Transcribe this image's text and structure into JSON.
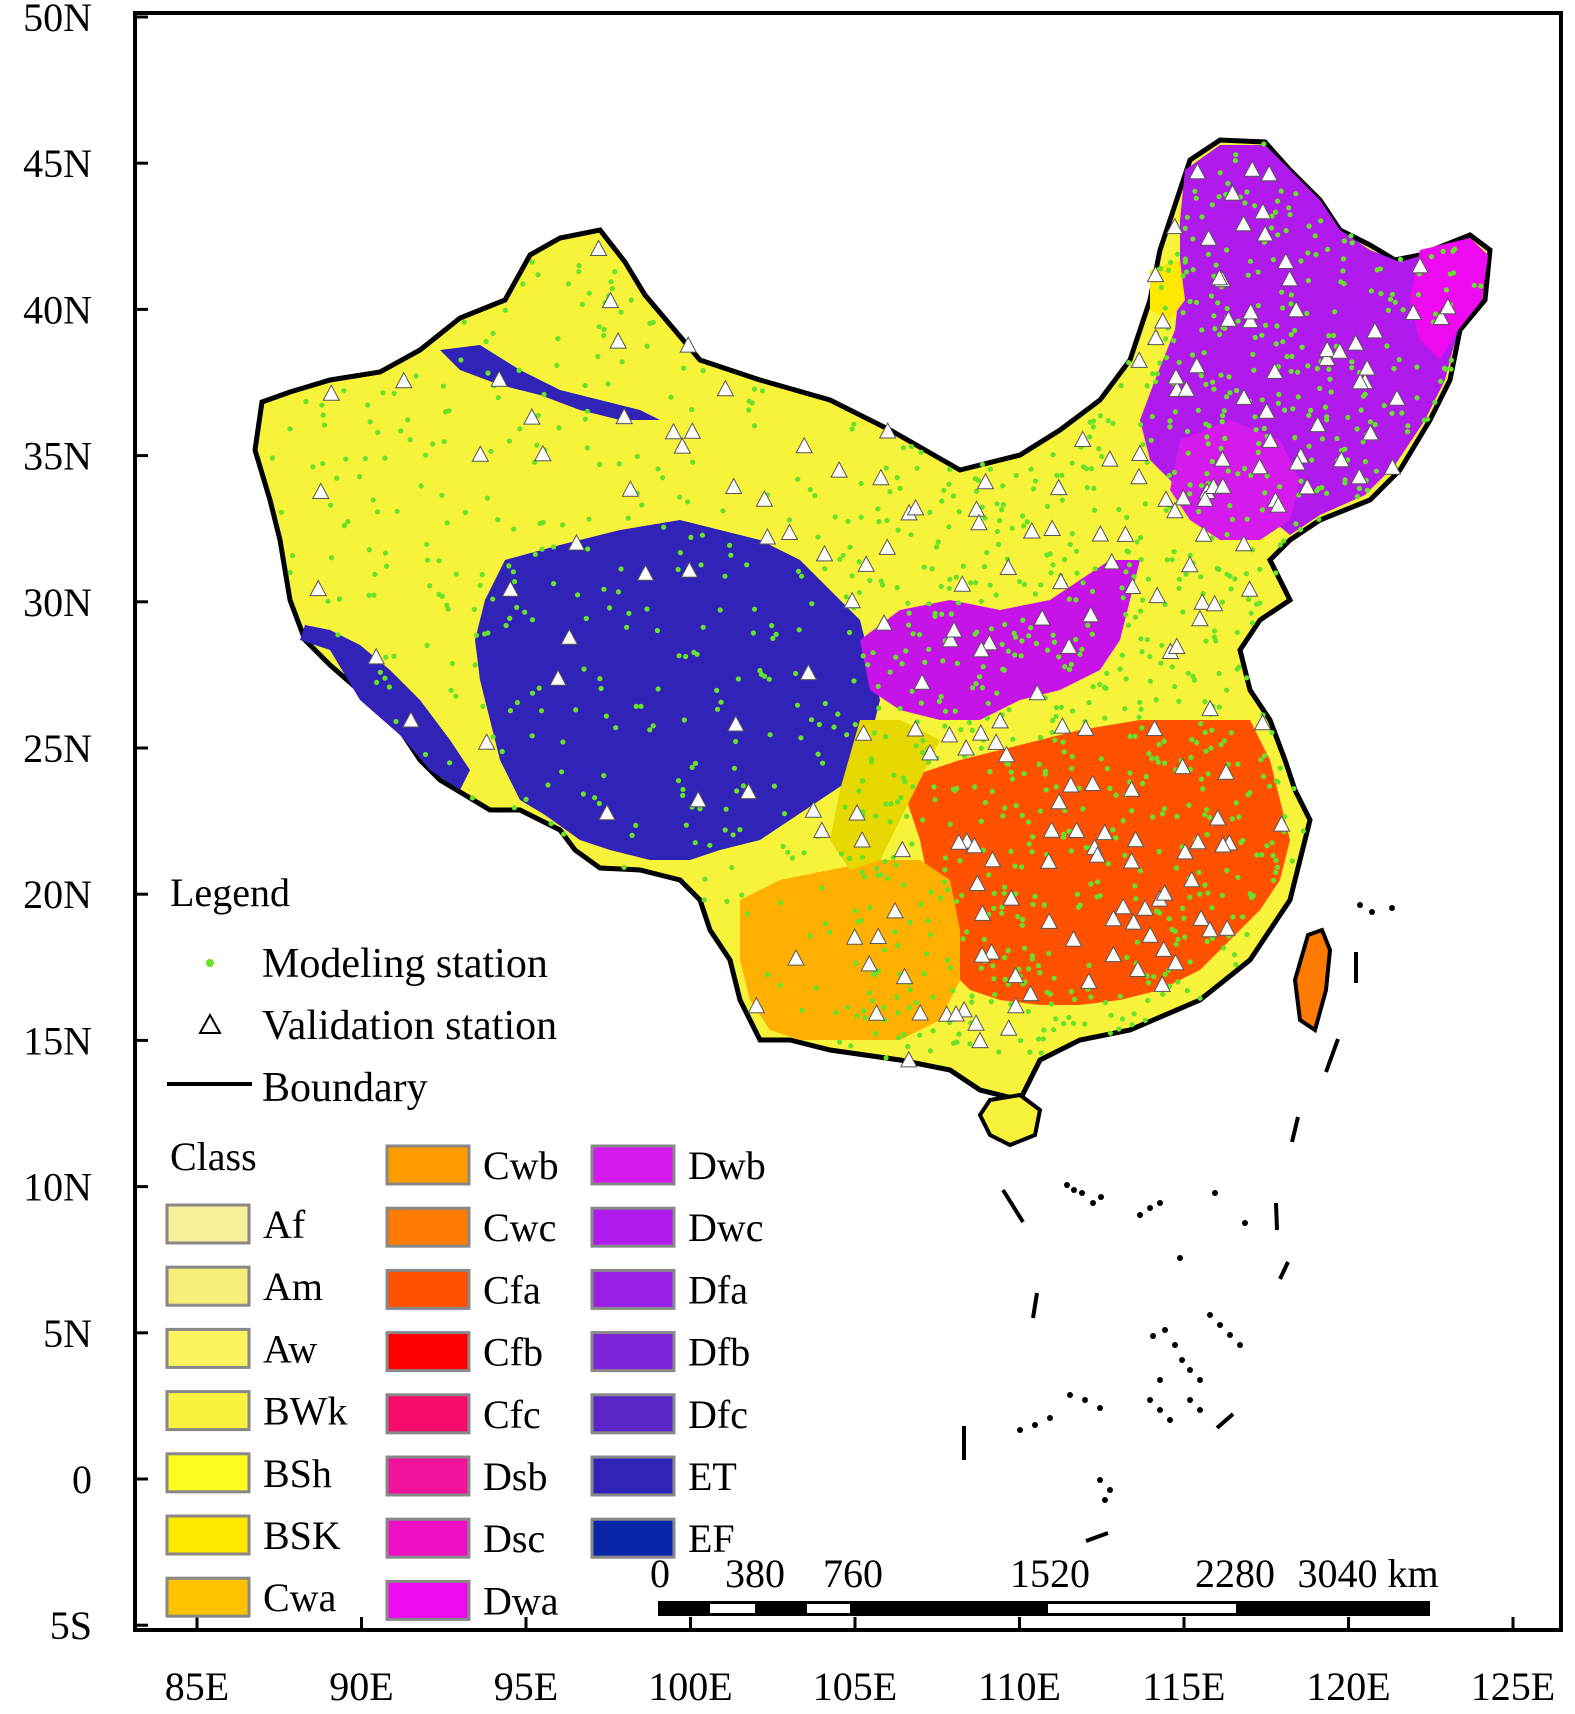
{
  "map": {
    "y_axis_labels": [
      "50N",
      "45N",
      "40N",
      "35N",
      "30N",
      "25N",
      "20N",
      "15N",
      "10N",
      "5N",
      "0",
      "5S"
    ],
    "x_axis_labels": [
      "85E",
      "90E",
      "95E",
      "100E",
      "105E",
      "110E",
      "115E",
      "120E",
      "125E"
    ]
  },
  "legend": {
    "title": "Legend",
    "items": [
      {
        "label": "Modeling station",
        "symbol": "green-dot-icon",
        "color": "#66e22a"
      },
      {
        "label": "Validation station",
        "symbol": "triangle-icon",
        "color": "#ffffff"
      },
      {
        "label": "Boundary",
        "symbol": "line-icon",
        "color": "#000000"
      }
    ]
  },
  "classes": {
    "title": "Class",
    "items": [
      {
        "label": "Af",
        "color": "#f7f09a"
      },
      {
        "label": "Am",
        "color": "#f8ef7a"
      },
      {
        "label": "Aw",
        "color": "#fbf45f"
      },
      {
        "label": "BWk",
        "color": "#f9f23f"
      },
      {
        "label": "BSh",
        "color": "#fffc22"
      },
      {
        "label": "BSK",
        "color": "#ffe800"
      },
      {
        "label": "Cwa",
        "color": "#ffc200"
      },
      {
        "label": "Cwb",
        "color": "#ff9c00"
      },
      {
        "label": "Cwc",
        "color": "#ff7a00"
      },
      {
        "label": "Cfa",
        "color": "#ff5100"
      },
      {
        "label": "Cfb",
        "color": "#ff0000"
      },
      {
        "label": "Cfc",
        "color": "#f70c6a"
      },
      {
        "label": "Dsb",
        "color": "#f0139c"
      },
      {
        "label": "Dsc",
        "color": "#ef10c4"
      },
      {
        "label": "Dwa",
        "color": "#ee0af0"
      },
      {
        "label": "Dwb",
        "color": "#d51aee"
      },
      {
        "label": "Dwc",
        "color": "#b01aed"
      },
      {
        "label": "Dfa",
        "color": "#9a1fe6"
      },
      {
        "label": "Dfb",
        "color": "#7d24d8"
      },
      {
        "label": "Dfc",
        "color": "#5a26c7"
      },
      {
        "label": "ET",
        "color": "#3223b8"
      },
      {
        "label": "EF",
        "color": "#0a26a8"
      }
    ]
  },
  "scale_bar": {
    "labels": [
      "0",
      "380",
      "760",
      "1520",
      "2280",
      "3040 km"
    ]
  }
}
